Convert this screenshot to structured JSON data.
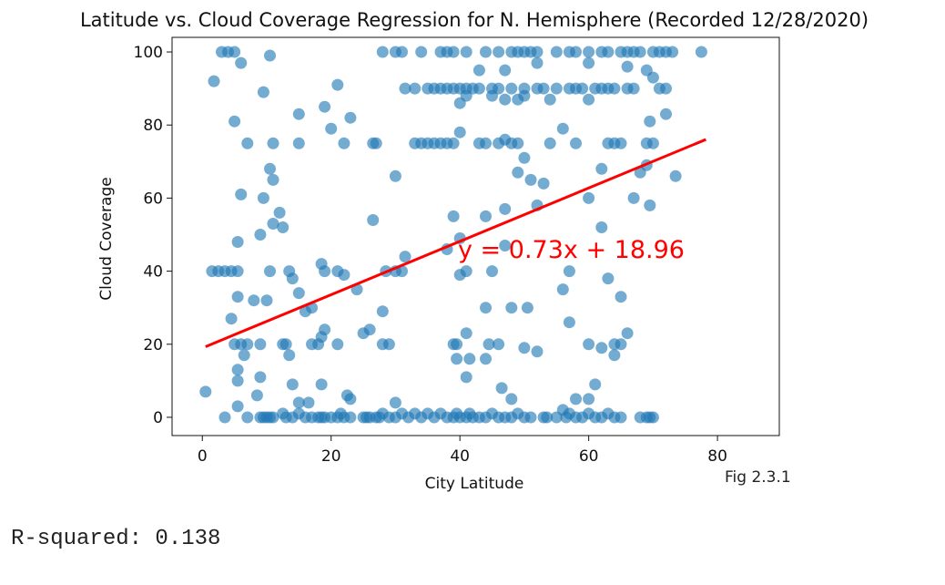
{
  "chart_data": {
    "type": "scatter",
    "title": "Latitude vs. Cloud Coverage Regression for N. Hemisphere (Recorded 12/28/2020)",
    "xlabel": "City Latitude",
    "ylabel": "Cloud Coverage",
    "xlim": [
      -4.7,
      89.6
    ],
    "ylim": [
      -5,
      104
    ],
    "xticks": [
      0,
      20,
      40,
      60,
      80
    ],
    "yticks": [
      0,
      20,
      40,
      60,
      80,
      100
    ],
    "grid": false,
    "regression": {
      "slope": 0.73,
      "intercept": 18.96,
      "x_range": [
        0.5,
        78.2
      ],
      "equation": "y = 0.73x + 18.96",
      "color": "#ff0000"
    },
    "point_color": "#1f77b4",
    "points": [
      [
        3,
        100
      ],
      [
        4,
        100
      ],
      [
        5,
        100
      ],
      [
        6,
        97
      ],
      [
        1.8,
        92
      ],
      [
        10.5,
        99
      ],
      [
        9.5,
        89
      ],
      [
        5,
        81
      ],
      [
        7,
        75
      ],
      [
        11,
        75
      ],
      [
        15,
        83
      ],
      [
        19,
        85
      ],
      [
        21,
        91
      ],
      [
        23,
        82
      ],
      [
        20,
        79
      ],
      [
        15,
        75
      ],
      [
        22,
        75
      ],
      [
        26.5,
        75
      ],
      [
        27,
        75
      ],
      [
        28,
        100
      ],
      [
        30,
        100
      ],
      [
        31,
        100
      ],
      [
        34,
        100
      ],
      [
        37,
        100
      ],
      [
        38,
        100
      ],
      [
        39,
        100
      ],
      [
        41,
        100
      ],
      [
        44,
        100
      ],
      [
        46,
        100
      ],
      [
        48,
        100
      ],
      [
        49,
        100
      ],
      [
        50,
        100
      ],
      [
        51,
        100
      ],
      [
        52,
        100
      ],
      [
        55,
        100
      ],
      [
        57,
        100
      ],
      [
        58,
        100
      ],
      [
        60,
        100
      ],
      [
        62,
        100
      ],
      [
        63,
        100
      ],
      [
        65,
        100
      ],
      [
        66,
        100
      ],
      [
        67,
        100
      ],
      [
        68,
        100
      ],
      [
        70,
        100
      ],
      [
        71,
        100
      ],
      [
        72,
        100
      ],
      [
        73,
        100
      ],
      [
        77.5,
        100
      ],
      [
        31.5,
        90
      ],
      [
        33,
        90
      ],
      [
        35,
        90
      ],
      [
        36,
        90
      ],
      [
        37,
        90
      ],
      [
        38,
        90
      ],
      [
        39,
        90
      ],
      [
        40,
        90
      ],
      [
        41,
        90
      ],
      [
        42,
        90
      ],
      [
        43,
        90
      ],
      [
        45,
        90
      ],
      [
        46,
        90
      ],
      [
        48,
        90
      ],
      [
        50,
        90
      ],
      [
        52,
        90
      ],
      [
        53,
        90
      ],
      [
        55,
        90
      ],
      [
        57,
        90
      ],
      [
        58,
        90
      ],
      [
        59,
        90
      ],
      [
        61,
        90
      ],
      [
        62,
        90
      ],
      [
        63,
        90
      ],
      [
        64,
        90
      ],
      [
        66,
        90
      ],
      [
        67,
        90
      ],
      [
        71,
        90
      ],
      [
        72,
        90
      ],
      [
        43,
        95
      ],
      [
        47,
        95
      ],
      [
        52,
        97
      ],
      [
        60,
        97
      ],
      [
        66,
        96
      ],
      [
        69,
        95
      ],
      [
        70,
        93
      ],
      [
        40,
        86
      ],
      [
        41,
        88
      ],
      [
        45,
        88
      ],
      [
        47,
        87
      ],
      [
        49,
        87
      ],
      [
        50,
        88
      ],
      [
        54,
        87
      ],
      [
        60,
        87
      ],
      [
        33,
        75
      ],
      [
        34,
        75
      ],
      [
        35,
        75
      ],
      [
        36,
        75
      ],
      [
        37,
        75
      ],
      [
        38,
        75
      ],
      [
        39,
        75
      ],
      [
        40,
        78
      ],
      [
        43,
        75
      ],
      [
        44,
        75
      ],
      [
        46,
        75
      ],
      [
        47,
        76
      ],
      [
        48,
        75
      ],
      [
        49,
        75
      ],
      [
        54,
        75
      ],
      [
        56,
        79
      ],
      [
        58,
        75
      ],
      [
        63,
        75
      ],
      [
        64,
        75
      ],
      [
        65,
        75
      ],
      [
        69,
        75
      ],
      [
        70,
        75
      ],
      [
        69.5,
        81
      ],
      [
        72,
        83
      ],
      [
        73.5,
        66
      ],
      [
        68,
        67
      ],
      [
        69,
        69
      ],
      [
        67,
        60
      ],
      [
        69.5,
        58
      ],
      [
        62,
        68
      ],
      [
        60,
        60
      ],
      [
        62,
        52
      ],
      [
        63,
        38
      ],
      [
        65,
        33
      ],
      [
        57,
        40
      ],
      [
        56,
        35
      ],
      [
        57,
        26
      ],
      [
        60,
        20
      ],
      [
        62,
        19
      ],
      [
        65,
        20
      ],
      [
        61,
        9
      ],
      [
        60,
        5
      ],
      [
        58,
        5
      ],
      [
        50,
        71
      ],
      [
        49,
        67
      ],
      [
        51,
        65
      ],
      [
        53,
        64
      ],
      [
        52,
        58
      ],
      [
        47,
        57
      ],
      [
        44,
        55
      ],
      [
        39,
        55
      ],
      [
        40,
        49
      ],
      [
        38,
        46
      ],
      [
        41,
        40
      ],
      [
        40,
        39
      ],
      [
        45,
        40
      ],
      [
        47,
        47
      ],
      [
        30,
        66
      ],
      [
        26.5,
        54
      ],
      [
        12,
        56
      ],
      [
        12.5,
        52
      ],
      [
        11,
        53
      ],
      [
        9.5,
        60
      ],
      [
        10.5,
        68
      ],
      [
        11,
        65
      ],
      [
        6,
        61
      ],
      [
        5.5,
        48
      ],
      [
        9,
        50
      ],
      [
        1.5,
        40
      ],
      [
        2.5,
        40
      ],
      [
        3.5,
        40
      ],
      [
        4.5,
        40
      ],
      [
        5.5,
        40
      ],
      [
        10.5,
        40
      ],
      [
        13.5,
        40
      ],
      [
        14,
        38
      ],
      [
        18.5,
        42
      ],
      [
        19,
        40
      ],
      [
        21,
        40
      ],
      [
        22,
        39
      ],
      [
        24,
        35
      ],
      [
        15,
        34
      ],
      [
        16,
        29
      ],
      [
        17,
        30
      ],
      [
        28,
        29
      ],
      [
        28.5,
        40
      ],
      [
        30,
        40
      ],
      [
        31,
        40
      ],
      [
        31.5,
        44
      ],
      [
        48,
        30
      ],
      [
        50.5,
        30
      ],
      [
        44,
        30
      ],
      [
        4.5,
        27
      ],
      [
        5.5,
        33
      ],
      [
        8,
        32
      ],
      [
        10,
        32
      ],
      [
        6,
        20
      ],
      [
        5,
        20
      ],
      [
        7,
        20
      ],
      [
        9,
        20
      ],
      [
        12.5,
        20
      ],
      [
        13,
        20
      ],
      [
        13.5,
        17
      ],
      [
        17,
        20
      ],
      [
        18,
        20
      ],
      [
        18.5,
        22
      ],
      [
        19,
        24
      ],
      [
        21,
        20
      ],
      [
        25,
        23
      ],
      [
        26,
        24
      ],
      [
        28,
        20
      ],
      [
        29,
        20
      ],
      [
        39,
        20
      ],
      [
        39.5,
        20
      ],
      [
        41,
        23
      ],
      [
        44.5,
        20
      ],
      [
        46,
        20
      ],
      [
        50,
        19
      ],
      [
        52,
        18
      ],
      [
        6.5,
        17
      ],
      [
        5.5,
        13
      ],
      [
        5.5,
        10
      ],
      [
        5.5,
        3
      ],
      [
        9,
        11
      ],
      [
        8.5,
        6
      ],
      [
        14,
        9
      ],
      [
        18.5,
        9
      ],
      [
        15,
        4
      ],
      [
        16.5,
        4
      ],
      [
        22.5,
        6
      ],
      [
        23,
        5
      ],
      [
        41,
        11
      ],
      [
        39.5,
        16
      ],
      [
        41.5,
        16
      ],
      [
        44,
        16
      ],
      [
        46.5,
        8
      ],
      [
        48,
        5
      ],
      [
        30,
        4
      ],
      [
        0.5,
        7
      ],
      [
        3.5,
        0
      ],
      [
        7,
        0
      ],
      [
        9,
        0
      ],
      [
        9.5,
        0
      ],
      [
        10,
        0
      ],
      [
        10.5,
        0
      ],
      [
        11,
        0
      ],
      [
        12.5,
        1
      ],
      [
        13,
        0
      ],
      [
        14,
        0
      ],
      [
        15,
        1
      ],
      [
        16,
        0
      ],
      [
        17,
        0
      ],
      [
        18,
        0
      ],
      [
        18.5,
        0
      ],
      [
        19,
        0
      ],
      [
        20,
        0
      ],
      [
        21,
        0
      ],
      [
        21.5,
        1
      ],
      [
        22,
        0
      ],
      [
        23,
        0
      ],
      [
        25,
        0
      ],
      [
        25.5,
        0
      ],
      [
        26,
        0
      ],
      [
        27,
        0
      ],
      [
        27.5,
        0
      ],
      [
        28,
        1
      ],
      [
        29,
        0
      ],
      [
        30,
        0
      ],
      [
        31,
        1
      ],
      [
        32,
        0
      ],
      [
        33,
        1
      ],
      [
        34,
        0
      ],
      [
        35,
        1
      ],
      [
        36,
        0
      ],
      [
        37,
        1
      ],
      [
        38,
        0
      ],
      [
        39,
        0
      ],
      [
        39.5,
        1
      ],
      [
        40,
        0
      ],
      [
        41,
        0
      ],
      [
        41.5,
        1
      ],
      [
        42,
        0
      ],
      [
        43,
        0
      ],
      [
        44,
        0
      ],
      [
        45,
        1
      ],
      [
        46,
        0
      ],
      [
        47,
        0
      ],
      [
        48,
        0
      ],
      [
        49,
        1
      ],
      [
        50,
        0
      ],
      [
        51,
        0
      ],
      [
        53,
        0
      ],
      [
        53.5,
        0
      ],
      [
        55,
        0
      ],
      [
        56,
        2
      ],
      [
        56.5,
        0
      ],
      [
        57,
        1
      ],
      [
        58,
        0
      ],
      [
        59,
        0
      ],
      [
        60,
        1
      ],
      [
        61,
        0
      ],
      [
        62,
        0
      ],
      [
        63,
        1
      ],
      [
        64,
        0
      ],
      [
        65,
        0
      ],
      [
        68,
        0
      ],
      [
        69,
        0
      ],
      [
        69.5,
        0
      ],
      [
        70,
        0
      ],
      [
        64,
        17
      ],
      [
        64,
        20
      ],
      [
        66,
        23
      ]
    ]
  },
  "fig_label": "Fig 2.3.1",
  "r_squared_text": "R-squared: 0.138"
}
